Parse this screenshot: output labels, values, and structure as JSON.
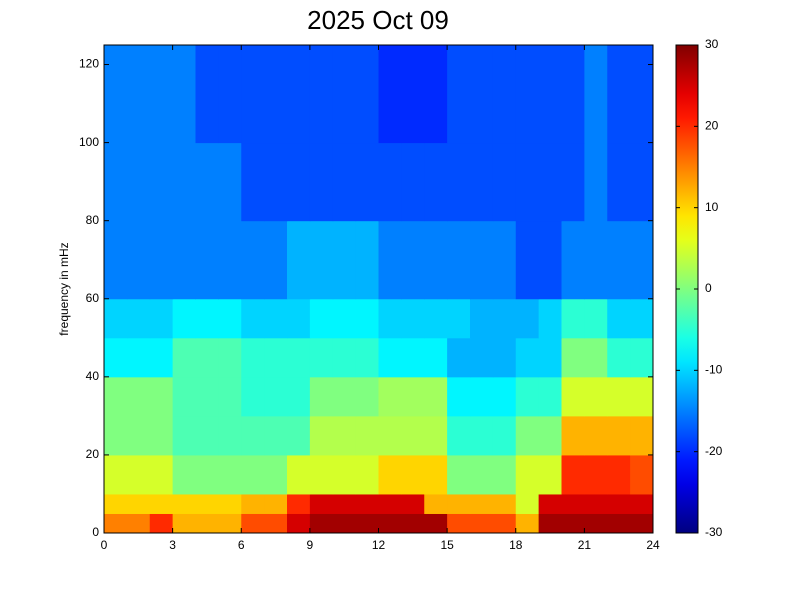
{
  "chart_data": {
    "type": "heatmap",
    "title": "2025 Oct 09",
    "y_label": "frequency in mHz",
    "colormap": "jet",
    "x_bins": [
      0,
      1,
      2,
      3,
      4,
      5,
      6,
      7,
      8,
      9,
      10,
      11,
      12,
      13,
      14,
      15,
      16,
      17,
      18,
      19,
      20,
      21,
      22,
      23,
      24
    ],
    "y_bins": [
      0,
      5,
      10,
      20,
      30,
      40,
      50,
      60,
      80,
      100,
      125
    ],
    "values": [
      [
        15,
        15,
        20,
        12,
        12,
        12,
        18,
        18,
        25,
        28,
        28,
        28,
        28,
        28,
        28,
        18,
        18,
        18,
        12,
        28,
        28,
        28,
        28,
        28
      ],
      [
        10,
        10,
        10,
        10,
        10,
        10,
        12,
        12,
        20,
        25,
        25,
        25,
        25,
        25,
        12,
        12,
        12,
        12,
        5,
        25,
        25,
        25,
        25,
        25
      ],
      [
        5,
        5,
        5,
        0,
        0,
        0,
        0,
        0,
        5,
        5,
        5,
        5,
        10,
        10,
        10,
        0,
        0,
        0,
        5,
        5,
        20,
        20,
        20,
        18
      ],
      [
        0,
        0,
        0,
        -3,
        -3,
        -3,
        -3,
        -3,
        -3,
        3,
        3,
        3,
        3,
        3,
        3,
        -5,
        -5,
        -5,
        0,
        0,
        12,
        12,
        12,
        12
      ],
      [
        0,
        0,
        0,
        -3,
        -3,
        -3,
        -5,
        -5,
        -5,
        0,
        0,
        0,
        2,
        2,
        2,
        -8,
        -8,
        -8,
        -5,
        -5,
        5,
        5,
        5,
        5
      ],
      [
        -8,
        -8,
        -8,
        -3,
        -3,
        -3,
        -5,
        -5,
        -5,
        -5,
        -5,
        -5,
        -8,
        -8,
        -8,
        -12,
        -12,
        -12,
        -10,
        -10,
        0,
        0,
        -5,
        -5
      ],
      [
        -10,
        -10,
        -10,
        -8,
        -8,
        -8,
        -10,
        -10,
        -10,
        -8,
        -8,
        -8,
        -10,
        -10,
        -10,
        -10,
        -12,
        -12,
        -12,
        -10,
        -5,
        -5,
        -10,
        -10
      ],
      [
        -15,
        -15,
        -15,
        -15,
        -15,
        -15,
        -15,
        -15,
        -12,
        -12,
        -12,
        -12,
        -15,
        -15,
        -15,
        -15,
        -15,
        -15,
        -18,
        -18,
        -15,
        -15,
        -15,
        -15
      ],
      [
        -15,
        -15,
        -15,
        -15,
        -15,
        -15,
        -18,
        -18,
        -18,
        -18,
        -18,
        -18,
        -18,
        -18,
        -18,
        -18,
        -18,
        -18,
        -18,
        -18,
        -18,
        -15,
        -18,
        -18
      ],
      [
        -15,
        -15,
        -15,
        -15,
        -18,
        -18,
        -18,
        -18,
        -18,
        -18,
        -18,
        -18,
        -20,
        -20,
        -20,
        -18,
        -18,
        -18,
        -18,
        -18,
        -18,
        -15,
        -18,
        -18
      ]
    ],
    "xlim": [
      0,
      24
    ],
    "xticks": [
      0,
      3,
      6,
      9,
      12,
      15,
      18,
      21,
      24
    ],
    "ylim": [
      0,
      125
    ],
    "yticks": [
      0,
      20,
      40,
      60,
      80,
      100,
      120
    ],
    "clim": [
      -30,
      30
    ],
    "cticks": [
      -30,
      -20,
      -10,
      0,
      10,
      20,
      30
    ]
  }
}
